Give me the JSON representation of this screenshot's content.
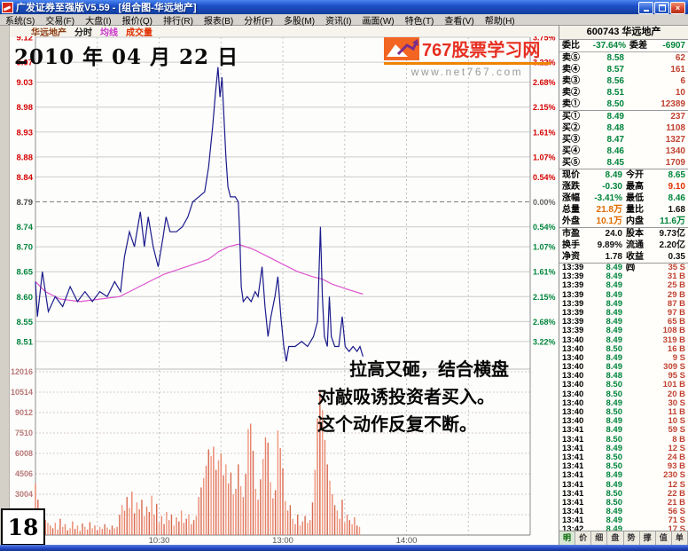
{
  "window": {
    "title": "广发证券至强版V5.59 - [组合图-华远地产]"
  },
  "menu": {
    "items": [
      "系统(S)",
      "交易(F)",
      "大盘(I)",
      "报价(Q)",
      "排行(R)",
      "报表(B)",
      "分析(F)",
      "多股(M)",
      "资讯(I)",
      "画面(W)",
      "特色(T)",
      "查看(V)",
      "帮助(H)"
    ]
  },
  "chart_header": {
    "stock": "华远地产",
    "tabs": [
      "分时",
      "均线",
      "成交量"
    ]
  },
  "logo": {
    "title": "767股票学习网",
    "url": "www.net767.com"
  },
  "annotations": {
    "date": "2010 年 04 月 22 日",
    "comment_lines": [
      "拉高又砸，结合横盘",
      "对敲吸诱投资者买入。",
      "这个动作反复不断。"
    ],
    "slide_number": "18"
  },
  "chart_data": {
    "type": "line",
    "title": "华远地产 分时走势图 2010-04-22",
    "prev_close": 8.79,
    "open": 8.65,
    "high": 9.1,
    "low": 8.46,
    "last": 8.49,
    "price_axis": {
      "labels": [
        "9.12",
        "9.07",
        "9.03",
        "8.98",
        "8.93",
        "8.88",
        "8.84",
        "8.79",
        "8.74",
        "8.70",
        "8.65",
        "8.60",
        "8.55",
        "8.51"
      ],
      "max": 9.12,
      "min": 8.46
    },
    "pct_axis": [
      "3.75%",
      "3.22%",
      "2.68%",
      "2.15%",
      "1.61%",
      "1.07%",
      "0.54%",
      "0.00%",
      "0.54%",
      "1.07%",
      "1.61%",
      "2.15%",
      "2.68%",
      "3.22%"
    ],
    "volume_axis": [
      "12016",
      "10514",
      "9012",
      "7510",
      "6008",
      "4506",
      "3004",
      "1502"
    ],
    "time_axis": [
      {
        "t": 0.25,
        "label": "10:30"
      },
      {
        "t": 0.5,
        "label": "13:00"
      },
      {
        "t": 0.75,
        "label": "14:00"
      }
    ],
    "price_series": [
      [
        0.0,
        8.63
      ],
      [
        0.004,
        8.56
      ],
      [
        0.014,
        8.65
      ],
      [
        0.026,
        8.57
      ],
      [
        0.04,
        8.6
      ],
      [
        0.055,
        8.58
      ],
      [
        0.07,
        8.62
      ],
      [
        0.085,
        8.59
      ],
      [
        0.1,
        8.61
      ],
      [
        0.115,
        8.59
      ],
      [
        0.13,
        8.61
      ],
      [
        0.145,
        8.6
      ],
      [
        0.16,
        8.63
      ],
      [
        0.172,
        8.61
      ],
      [
        0.18,
        8.68
      ],
      [
        0.19,
        8.73
      ],
      [
        0.2,
        8.7
      ],
      [
        0.212,
        8.77
      ],
      [
        0.22,
        8.7
      ],
      [
        0.228,
        8.76
      ],
      [
        0.238,
        8.7
      ],
      [
        0.248,
        8.66
      ],
      [
        0.258,
        8.72
      ],
      [
        0.264,
        8.76
      ],
      [
        0.272,
        8.73
      ],
      [
        0.285,
        8.73
      ],
      [
        0.297,
        8.74
      ],
      [
        0.308,
        8.76
      ],
      [
        0.318,
        8.79
      ],
      [
        0.33,
        8.8
      ],
      [
        0.342,
        8.81
      ],
      [
        0.35,
        8.86
      ],
      [
        0.358,
        8.94
      ],
      [
        0.364,
        9.01
      ],
      [
        0.369,
        9.06
      ],
      [
        0.373,
        9.0
      ],
      [
        0.377,
        9.04
      ],
      [
        0.381,
        8.96
      ],
      [
        0.385,
        8.88
      ],
      [
        0.389,
        8.82
      ],
      [
        0.394,
        8.8
      ],
      [
        0.404,
        8.8
      ],
      [
        0.41,
        8.79
      ],
      [
        0.413,
        8.72
      ],
      [
        0.416,
        8.62
      ],
      [
        0.42,
        8.59
      ],
      [
        0.428,
        8.6
      ],
      [
        0.436,
        8.59
      ],
      [
        0.444,
        8.61
      ],
      [
        0.45,
        8.6
      ],
      [
        0.458,
        8.66
      ],
      [
        0.464,
        8.58
      ],
      [
        0.47,
        8.52
      ],
      [
        0.476,
        8.56
      ],
      [
        0.484,
        8.6
      ],
      [
        0.49,
        8.64
      ],
      [
        0.496,
        8.56
      ],
      [
        0.502,
        8.5
      ],
      [
        0.507,
        8.47
      ],
      [
        0.512,
        8.5
      ],
      [
        0.525,
        8.5
      ],
      [
        0.538,
        8.51
      ],
      [
        0.55,
        8.5
      ],
      [
        0.562,
        8.52
      ],
      [
        0.57,
        8.55
      ],
      [
        0.576,
        8.74
      ],
      [
        0.58,
        8.6
      ],
      [
        0.584,
        8.52
      ],
      [
        0.59,
        8.5
      ],
      [
        0.594,
        8.6
      ],
      [
        0.598,
        8.52
      ],
      [
        0.605,
        8.5
      ],
      [
        0.613,
        8.5
      ],
      [
        0.62,
        8.56
      ],
      [
        0.626,
        8.5
      ],
      [
        0.634,
        8.49
      ],
      [
        0.642,
        8.5
      ],
      [
        0.65,
        8.49
      ],
      [
        0.656,
        8.5
      ],
      [
        0.662,
        8.48
      ]
    ],
    "avg_series": [
      [
        0.0,
        8.63
      ],
      [
        0.02,
        8.61
      ],
      [
        0.05,
        8.595
      ],
      [
        0.09,
        8.59
      ],
      [
        0.13,
        8.595
      ],
      [
        0.17,
        8.6
      ],
      [
        0.2,
        8.615
      ],
      [
        0.23,
        8.63
      ],
      [
        0.26,
        8.645
      ],
      [
        0.29,
        8.655
      ],
      [
        0.32,
        8.665
      ],
      [
        0.35,
        8.675
      ],
      [
        0.37,
        8.69
      ],
      [
        0.39,
        8.7
      ],
      [
        0.41,
        8.705
      ],
      [
        0.44,
        8.695
      ],
      [
        0.47,
        8.68
      ],
      [
        0.5,
        8.665
      ],
      [
        0.53,
        8.65
      ],
      [
        0.56,
        8.64
      ],
      [
        0.58,
        8.635
      ],
      [
        0.6,
        8.625
      ],
      [
        0.63,
        8.615
      ],
      [
        0.662,
        8.605
      ]
    ],
    "volume_bars": {
      "t_step": 0.005,
      "values": [
        3800,
        2600,
        1900,
        1400,
        1100,
        900,
        700,
        500,
        900,
        400,
        1200,
        600,
        800,
        350,
        500,
        1000,
        450,
        700,
        300,
        850,
        600,
        400,
        950,
        500,
        700,
        350,
        600,
        450,
        800,
        550,
        400,
        700,
        500,
        600,
        1500,
        2200,
        1800,
        2800,
        2000,
        3200,
        1600,
        2400,
        1900,
        2600,
        1400,
        2100,
        1700,
        2900,
        1500,
        2300,
        900,
        1400,
        800,
        1700,
        1100,
        1500,
        700,
        1300,
        1000,
        1800,
        900,
        1200,
        1500,
        800,
        1100,
        1400,
        2800,
        3500,
        4200,
        5100,
        6300,
        5800,
        6500,
        4800,
        5500,
        6000,
        4400,
        5200,
        3800,
        4600,
        3000,
        3400,
        5200,
        3600,
        2800,
        4500,
        7800,
        8200,
        6200,
        3400,
        2600,
        4100,
        5600,
        7200,
        6800,
        3900,
        2700,
        3300,
        7700,
        6400,
        4900,
        2500,
        1800,
        2200,
        1200,
        800,
        1500,
        700,
        1000,
        1400,
        900,
        1100,
        2400,
        4800,
        8600,
        10600,
        9200,
        7000,
        5200,
        4000,
        3000,
        2200,
        1800,
        1200,
        2600,
        900,
        1500,
        1100,
        800,
        1300,
        700,
        600
      ]
    },
    "colors": {
      "price_line": "#1a1a8c",
      "avg_line": "#dd55cc",
      "volume_bar": "#e07b5f",
      "up": "#d40000",
      "down": "#00843c"
    }
  },
  "panel": {
    "header": "600743 华远地产",
    "weibi": {
      "label1": "委比",
      "value1": "-37.64%",
      "label2": "委差",
      "value2": "-6907"
    },
    "asks": [
      [
        "卖⑤",
        "8.58",
        "62"
      ],
      [
        "卖④",
        "8.57",
        "161"
      ],
      [
        "卖③",
        "8.56",
        "6"
      ],
      [
        "卖②",
        "8.51",
        "10"
      ],
      [
        "卖①",
        "8.50",
        "12389"
      ]
    ],
    "bids": [
      [
        "买①",
        "8.49",
        "237"
      ],
      [
        "买②",
        "8.48",
        "1108"
      ],
      [
        "买③",
        "8.47",
        "1327"
      ],
      [
        "买④",
        "8.46",
        "1340"
      ],
      [
        "买⑤",
        "8.45",
        "1709"
      ]
    ],
    "stats_a": [
      [
        {
          "l": "现价",
          "v": "8.49",
          "c": "g"
        },
        {
          "l": "今开",
          "v": "8.65",
          "c": "g"
        }
      ],
      [
        {
          "l": "涨跌",
          "v": "-0.30",
          "c": "g"
        },
        {
          "l": "最高",
          "v": "9.10",
          "c": "r"
        }
      ],
      [
        {
          "l": "涨幅",
          "v": "-3.41%",
          "c": "g"
        },
        {
          "l": "最低",
          "v": "8.46",
          "c": "g"
        }
      ],
      [
        {
          "l": "总量",
          "v": "21.8万",
          "c": "o"
        },
        {
          "l": "量比",
          "v": "1.68",
          "c": "k"
        }
      ],
      [
        {
          "l": "外盘",
          "v": "10.1万",
          "c": "o"
        },
        {
          "l": "内盘",
          "v": "11.6万",
          "c": "g"
        }
      ]
    ],
    "stats_b": [
      [
        {
          "l": "市盈",
          "v": "24.0",
          "c": "k"
        },
        {
          "l": "股本",
          "v": "9.73亿",
          "c": "k"
        }
      ],
      [
        {
          "l": "换手",
          "v": "9.89%",
          "c": "k"
        },
        {
          "l": "流通",
          "v": "2.20亿",
          "c": "k"
        }
      ],
      [
        {
          "l": "净资",
          "v": "1.78",
          "c": "k"
        },
        {
          "l": "收益㈣",
          "v": "0.35",
          "c": "k"
        }
      ]
    ],
    "ticks": [
      [
        "13:39",
        "8.49",
        "35",
        "S"
      ],
      [
        "13:39",
        "8.49",
        "31",
        "B"
      ],
      [
        "13:39",
        "8.49",
        "25",
        "B"
      ],
      [
        "13:39",
        "8.49",
        "29",
        "B"
      ],
      [
        "13:39",
        "8.49",
        "87",
        "B"
      ],
      [
        "13:39",
        "8.49",
        "97",
        "B"
      ],
      [
        "13:39",
        "8.49",
        "65",
        "B"
      ],
      [
        "13:39",
        "8.49",
        "108",
        "B"
      ],
      [
        "13:40",
        "8.49",
        "319",
        "B"
      ],
      [
        "13:40",
        "8.50",
        "16",
        "B"
      ],
      [
        "13:40",
        "8.49",
        "9",
        "S"
      ],
      [
        "13:40",
        "8.49",
        "309",
        "S"
      ],
      [
        "13:40",
        "8.48",
        "95",
        "S"
      ],
      [
        "13:40",
        "8.50",
        "101",
        "B"
      ],
      [
        "13:40",
        "8.50",
        "20",
        "B"
      ],
      [
        "13:40",
        "8.49",
        "30",
        "S"
      ],
      [
        "13:40",
        "8.50",
        "11",
        "B"
      ],
      [
        "13:40",
        "8.49",
        "10",
        "S"
      ],
      [
        "13:41",
        "8.49",
        "59",
        "S"
      ],
      [
        "13:41",
        "8.50",
        "8",
        "B"
      ],
      [
        "13:41",
        "8.49",
        "12",
        "S"
      ],
      [
        "13:41",
        "8.50",
        "24",
        "B"
      ],
      [
        "13:41",
        "8.50",
        "93",
        "B"
      ],
      [
        "13:41",
        "8.49",
        "230",
        "S"
      ],
      [
        "13:41",
        "8.49",
        "12",
        "S"
      ],
      [
        "13:41",
        "8.50",
        "22",
        "B"
      ],
      [
        "13:41",
        "8.50",
        "21",
        "B"
      ],
      [
        "13:41",
        "8.49",
        "56",
        "S"
      ],
      [
        "13:41",
        "8.49",
        "71",
        "S"
      ],
      [
        "13:42",
        "8.49",
        "17",
        "S"
      ]
    ],
    "tabs": [
      "明",
      "价",
      "细",
      "盘",
      "势",
      "撑",
      "值",
      "单"
    ]
  }
}
